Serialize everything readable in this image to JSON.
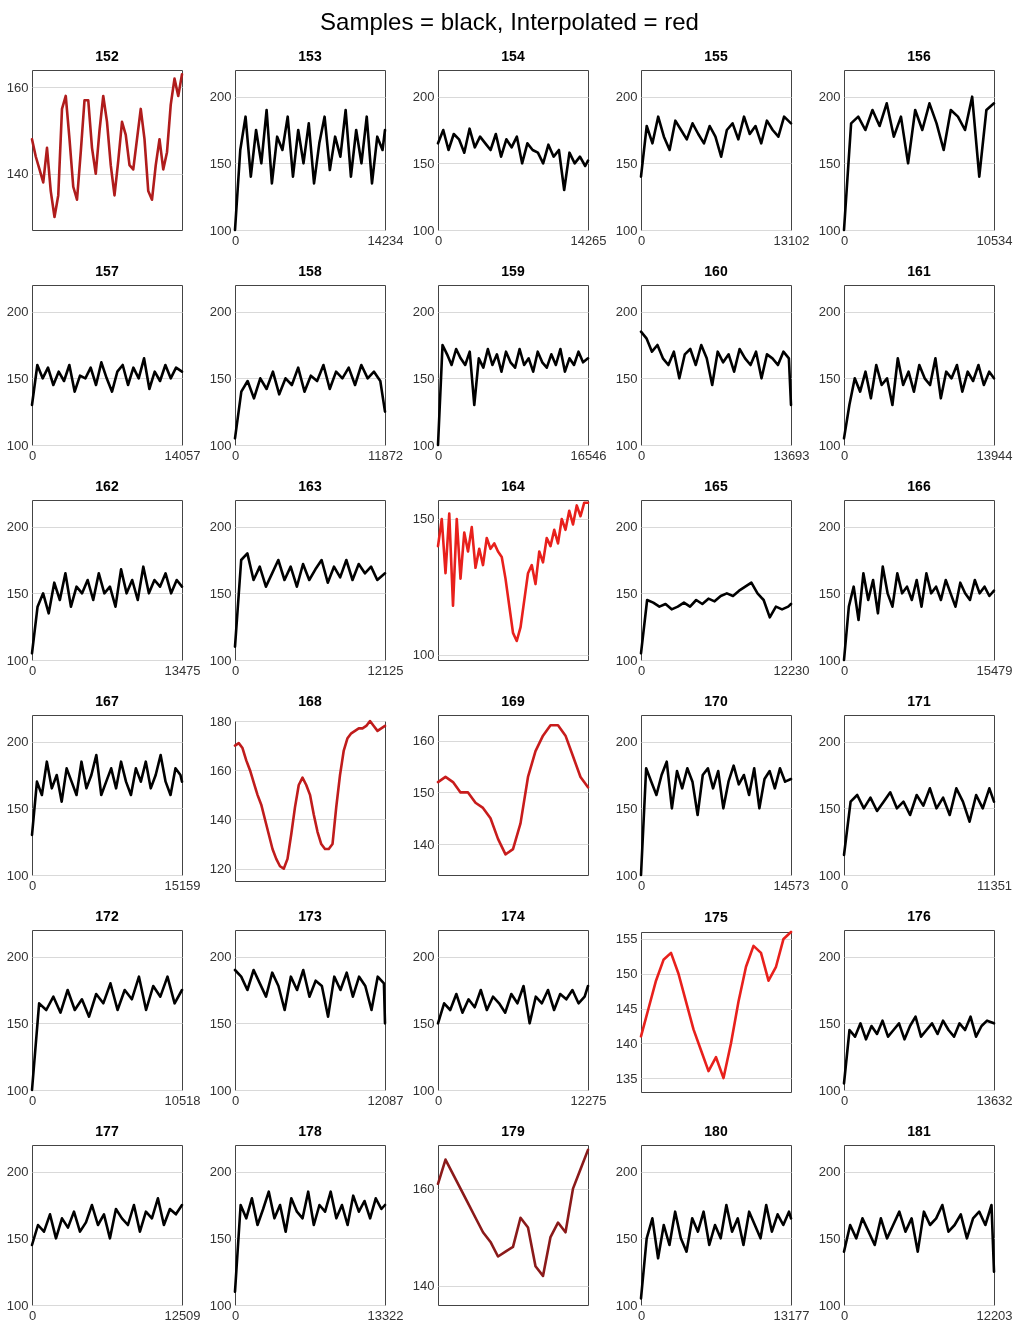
{
  "chart_data": [
    {
      "type": "line",
      "title": "152",
      "annotations": [
        "Samples = black, Interpolated = red"
      ],
      "categories": [
        null,
        null,
        null,
        null,
        null,
        null,
        null,
        null,
        null,
        null,
        null,
        null,
        null,
        null,
        null,
        null,
        null,
        null,
        null,
        null,
        null,
        null,
        null,
        null,
        null,
        null,
        null,
        null,
        null,
        null,
        null,
        null,
        null,
        null,
        null,
        null,
        null,
        null,
        null,
        null,
        null
      ],
      "series": [
        {
          "color": "#b01c1c",
          "values": [
            148,
            144,
            141,
            138,
            146,
            136,
            130,
            135,
            155,
            158,
            148,
            137,
            134,
            145,
            157,
            157,
            146,
            140,
            150,
            158,
            152,
            142,
            135,
            143,
            152,
            149,
            142,
            141,
            148,
            155,
            148,
            136,
            134,
            142,
            148,
            141,
            145,
            156,
            162,
            158,
            163
          ]
        }
      ],
      "tick_labels": "y",
      "ylim": [
        127,
        164
      ],
      "yticks": [
        140,
        160
      ],
      "grid": "y"
    },
    {
      "type": "line",
      "title": "153",
      "x": [
        0,
        500,
        1000,
        1500,
        2000,
        2500,
        3000,
        3500,
        4000,
        4500,
        5000,
        5500,
        6000,
        6500,
        7000,
        7500,
        8000,
        8500,
        9000,
        9500,
        10000,
        10500,
        11000,
        11500,
        12000,
        12500,
        13000,
        13500,
        14000,
        14234
      ],
      "series": [
        {
          "color": "#000000",
          "values": [
            100,
            160,
            185,
            140,
            175,
            150,
            190,
            135,
            170,
            160,
            185,
            140,
            175,
            150,
            180,
            135,
            165,
            185,
            145,
            170,
            155,
            190,
            140,
            175,
            150,
            185,
            135,
            170,
            160,
            175
          ]
        }
      ],
      "xlim": [
        0,
        14234
      ],
      "xticks": [
        0,
        14234
      ],
      "ylim": [
        100,
        220
      ],
      "yticks": [
        100,
        150,
        200
      ],
      "grid": "y"
    },
    {
      "type": "line",
      "title": "154",
      "x": [
        0,
        500,
        1000,
        1500,
        2000,
        2500,
        3000,
        3500,
        4000,
        4500,
        5000,
        5500,
        6000,
        6500,
        7000,
        7500,
        8000,
        8500,
        9000,
        9500,
        10000,
        10500,
        11000,
        11500,
        12000,
        12500,
        13000,
        13500,
        14000,
        14265
      ],
      "series": [
        {
          "color": "#000000",
          "values": [
            165,
            175,
            160,
            172,
            168,
            158,
            176,
            162,
            170,
            165,
            160,
            172,
            155,
            168,
            162,
            170,
            150,
            165,
            160,
            158,
            150,
            164,
            155,
            160,
            130,
            158,
            150,
            155,
            148,
            152
          ]
        }
      ],
      "xlim": [
        0,
        14265
      ],
      "xticks": [
        0,
        14265
      ],
      "ylim": [
        100,
        220
      ],
      "yticks": [
        100,
        150,
        200
      ],
      "grid": "y"
    },
    {
      "type": "line",
      "title": "155",
      "x": [
        0,
        500,
        1000,
        1500,
        2000,
        2500,
        3000,
        3500,
        4000,
        4500,
        5000,
        5500,
        6000,
        6500,
        7000,
        7500,
        8000,
        8500,
        9000,
        9500,
        10000,
        10500,
        11000,
        11500,
        12000,
        12500,
        13102
      ],
      "series": [
        {
          "color": "#000000",
          "values": [
            140,
            178,
            165,
            185,
            170,
            160,
            182,
            175,
            168,
            180,
            172,
            165,
            178,
            170,
            155,
            175,
            180,
            168,
            185,
            172,
            178,
            165,
            182,
            175,
            170,
            185,
            180
          ]
        }
      ],
      "xlim": [
        0,
        13102
      ],
      "xticks": [
        0,
        13102
      ],
      "ylim": [
        100,
        220
      ],
      "yticks": [
        100,
        150,
        200
      ],
      "grid": "y"
    },
    {
      "type": "line",
      "title": "156",
      "x": [
        0,
        500,
        1000,
        1500,
        2000,
        2500,
        3000,
        3500,
        4000,
        4500,
        5000,
        5500,
        6000,
        6500,
        7000,
        7500,
        8000,
        8500,
        9000,
        9500,
        10000,
        10534
      ],
      "series": [
        {
          "color": "#000000",
          "values": [
            100,
            180,
            185,
            175,
            190,
            178,
            195,
            170,
            185,
            150,
            190,
            175,
            195,
            180,
            160,
            190,
            185,
            175,
            200,
            140,
            190,
            195
          ]
        }
      ],
      "xlim": [
        0,
        10534
      ],
      "xticks": [
        0,
        10534
      ],
      "ylim": [
        100,
        220
      ],
      "yticks": [
        100,
        150,
        200
      ],
      "grid": "y"
    },
    {
      "type": "line",
      "title": "157",
      "x": [
        0,
        500,
        1000,
        1500,
        2000,
        2500,
        3000,
        3500,
        4000,
        4500,
        5000,
        5500,
        6000,
        6500,
        7000,
        7500,
        8000,
        8500,
        9000,
        9500,
        10000,
        10500,
        11000,
        11500,
        12000,
        12500,
        13000,
        13500,
        14057
      ],
      "series": [
        {
          "color": "#000000",
          "values": [
            130,
            160,
            150,
            158,
            145,
            155,
            148,
            160,
            140,
            152,
            150,
            158,
            145,
            162,
            150,
            140,
            155,
            160,
            145,
            158,
            150,
            165,
            142,
            155,
            148,
            160,
            150,
            158,
            155
          ]
        }
      ],
      "xlim": [
        0,
        14057
      ],
      "xticks": [
        0,
        14057
      ],
      "ylim": [
        100,
        220
      ],
      "yticks": [
        100,
        150,
        200
      ],
      "grid": "y"
    },
    {
      "type": "line",
      "title": "158",
      "x": [
        0,
        500,
        1000,
        1500,
        2000,
        2500,
        3000,
        3500,
        4000,
        4500,
        5000,
        5500,
        6000,
        6500,
        7000,
        7500,
        8000,
        8500,
        9000,
        9500,
        10000,
        10500,
        11000,
        11500,
        11872
      ],
      "series": [
        {
          "color": "#000000",
          "values": [
            105,
            140,
            148,
            135,
            150,
            142,
            155,
            138,
            150,
            145,
            158,
            140,
            152,
            148,
            160,
            142,
            155,
            150,
            158,
            145,
            160,
            150,
            155,
            148,
            125
          ]
        }
      ],
      "xlim": [
        0,
        11872
      ],
      "xticks": [
        0,
        11872
      ],
      "ylim": [
        100,
        220
      ],
      "yticks": [
        100,
        150,
        200
      ],
      "grid": "y"
    },
    {
      "type": "line",
      "title": "159",
      "x": [
        0,
        500,
        1000,
        1500,
        2000,
        2500,
        3000,
        3500,
        4000,
        4500,
        5000,
        5500,
        6000,
        6500,
        7000,
        7500,
        8000,
        8500,
        9000,
        9500,
        10000,
        10500,
        11000,
        11500,
        12000,
        12500,
        13000,
        13500,
        14000,
        14500,
        15000,
        15500,
        16000,
        16546
      ],
      "series": [
        {
          "color": "#000000",
          "values": [
            100,
            175,
            168,
            160,
            172,
            165,
            160,
            170,
            130,
            165,
            158,
            172,
            160,
            168,
            155,
            170,
            162,
            158,
            172,
            160,
            165,
            155,
            170,
            162,
            158,
            168,
            160,
            172,
            155,
            165,
            160,
            170,
            162,
            165
          ]
        }
      ],
      "xlim": [
        0,
        16546
      ],
      "xticks": [
        0,
        16546
      ],
      "ylim": [
        100,
        220
      ],
      "yticks": [
        100,
        150,
        200
      ],
      "grid": "y"
    },
    {
      "type": "line",
      "title": "160",
      "x": [
        0,
        500,
        1000,
        1500,
        2000,
        2500,
        3000,
        3500,
        4000,
        4500,
        5000,
        5500,
        6000,
        6500,
        7000,
        7500,
        8000,
        8500,
        9000,
        9500,
        10000,
        10500,
        11000,
        11500,
        12000,
        12500,
        13000,
        13500,
        13693
      ],
      "series": [
        {
          "color": "#000000",
          "values": [
            185,
            180,
            170,
            175,
            165,
            160,
            170,
            150,
            168,
            172,
            160,
            175,
            165,
            145,
            170,
            162,
            168,
            155,
            172,
            165,
            160,
            170,
            150,
            168,
            165,
            160,
            170,
            165,
            130
          ]
        }
      ],
      "xlim": [
        0,
        13693
      ],
      "xticks": [
        0,
        13693
      ],
      "ylim": [
        100,
        220
      ],
      "yticks": [
        100,
        150,
        200
      ],
      "grid": "y"
    },
    {
      "type": "line",
      "title": "161",
      "x": [
        0,
        500,
        1000,
        1500,
        2000,
        2500,
        3000,
        3500,
        4000,
        4500,
        5000,
        5500,
        6000,
        6500,
        7000,
        7500,
        8000,
        8500,
        9000,
        9500,
        10000,
        10500,
        11000,
        11500,
        12000,
        12500,
        13000,
        13500,
        13944
      ],
      "series": [
        {
          "color": "#000000",
          "values": [
            105,
            130,
            150,
            140,
            155,
            135,
            160,
            145,
            150,
            130,
            165,
            145,
            155,
            140,
            160,
            150,
            145,
            165,
            135,
            155,
            150,
            160,
            140,
            155,
            148,
            160,
            145,
            155,
            150
          ]
        }
      ],
      "xlim": [
        0,
        13944
      ],
      "xticks": [
        0,
        13944
      ],
      "ylim": [
        100,
        220
      ],
      "yticks": [
        100,
        150,
        200
      ],
      "grid": "y"
    },
    {
      "type": "line",
      "title": "162",
      "x": [
        0,
        500,
        1000,
        1500,
        2000,
        2500,
        3000,
        3500,
        4000,
        4500,
        5000,
        5500,
        6000,
        6500,
        7000,
        7500,
        8000,
        8500,
        9000,
        9500,
        10000,
        10500,
        11000,
        11500,
        12000,
        12500,
        13000,
        13475
      ],
      "series": [
        {
          "color": "#000000",
          "values": [
            105,
            140,
            150,
            135,
            158,
            145,
            165,
            140,
            155,
            150,
            160,
            145,
            165,
            150,
            155,
            140,
            168,
            150,
            160,
            145,
            170,
            150,
            160,
            155,
            165,
            150,
            160,
            155
          ]
        }
      ],
      "xlim": [
        0,
        13475
      ],
      "xticks": [
        0,
        13475
      ],
      "ylim": [
        100,
        220
      ],
      "yticks": [
        100,
        150,
        200
      ],
      "grid": "y"
    },
    {
      "type": "line",
      "title": "163",
      "x": [
        0,
        500,
        1000,
        1500,
        2000,
        2500,
        3000,
        3500,
        4000,
        4500,
        5000,
        5500,
        6000,
        6500,
        7000,
        7500,
        8000,
        8500,
        9000,
        9500,
        10000,
        10500,
        11000,
        11500,
        12125
      ],
      "series": [
        {
          "color": "#000000",
          "values": [
            110,
            175,
            180,
            160,
            170,
            155,
            165,
            175,
            160,
            170,
            155,
            172,
            160,
            168,
            175,
            158,
            170,
            162,
            175,
            160,
            172,
            165,
            170,
            160,
            165
          ]
        }
      ],
      "xlim": [
        0,
        12125
      ],
      "xticks": [
        0,
        12125
      ],
      "ylim": [
        100,
        220
      ],
      "yticks": [
        100,
        150,
        200
      ],
      "grid": "y"
    },
    {
      "type": "line",
      "title": "164",
      "categories": [
        null,
        null,
        null,
        null,
        null,
        null,
        null,
        null,
        null,
        null,
        null,
        null,
        null,
        null,
        null,
        null,
        null,
        null,
        null,
        null,
        null,
        null,
        null,
        null,
        null,
        null,
        null,
        null,
        null,
        null,
        null,
        null,
        null,
        null,
        null,
        null,
        null,
        null,
        null,
        null,
        null
      ],
      "series": [
        {
          "color": "#e8201c",
          "values": [
            140,
            150,
            130,
            152,
            118,
            150,
            128,
            145,
            138,
            147,
            132,
            139,
            133,
            143,
            139,
            141,
            138,
            136,
            128,
            118,
            108,
            105,
            110,
            120,
            130,
            133,
            126,
            138,
            134,
            143,
            140,
            146,
            141,
            150,
            146,
            153,
            148,
            155,
            151,
            156,
            156
          ]
        }
      ],
      "tick_labels": "y",
      "ylim": [
        98,
        157
      ],
      "yticks": [
        100,
        150
      ],
      "grid": "y"
    },
    {
      "type": "line",
      "title": "165",
      "x": [
        0,
        500,
        1000,
        1500,
        2000,
        2500,
        3000,
        3500,
        4000,
        4500,
        5000,
        5500,
        6000,
        6500,
        7000,
        7500,
        8000,
        8500,
        9000,
        9500,
        10000,
        10500,
        11000,
        11500,
        12000,
        12230
      ],
      "series": [
        {
          "color": "#000000",
          "values": [
            105,
            145,
            143,
            140,
            142,
            138,
            140,
            143,
            140,
            145,
            142,
            146,
            144,
            148,
            150,
            148,
            152,
            155,
            158,
            150,
            145,
            132,
            140,
            138,
            140,
            142
          ]
        }
      ],
      "xlim": [
        0,
        12230
      ],
      "xticks": [
        0,
        12230
      ],
      "ylim": [
        100,
        220
      ],
      "yticks": [
        100,
        150,
        200
      ],
      "grid": "y"
    },
    {
      "type": "line",
      "title": "166",
      "x": [
        0,
        500,
        1000,
        1500,
        2000,
        2500,
        3000,
        3500,
        4000,
        4500,
        5000,
        5500,
        6000,
        6500,
        7000,
        7500,
        8000,
        8500,
        9000,
        9500,
        10000,
        10500,
        11000,
        11500,
        12000,
        12500,
        13000,
        13500,
        14000,
        14500,
        15000,
        15479
      ],
      "series": [
        {
          "color": "#000000",
          "values": [
            100,
            140,
            155,
            130,
            165,
            145,
            160,
            135,
            170,
            150,
            140,
            165,
            150,
            155,
            145,
            160,
            140,
            165,
            150,
            155,
            145,
            160,
            150,
            140,
            158,
            150,
            145,
            160,
            150,
            155,
            148,
            152
          ]
        }
      ],
      "xlim": [
        0,
        15479
      ],
      "xticks": [
        0,
        15479
      ],
      "ylim": [
        100,
        220
      ],
      "yticks": [
        100,
        150,
        200
      ],
      "grid": "y"
    },
    {
      "type": "line",
      "title": "167",
      "x": [
        0,
        500,
        1000,
        1500,
        2000,
        2500,
        3000,
        3500,
        4000,
        4500,
        5000,
        5500,
        6000,
        6500,
        7000,
        7500,
        8000,
        8500,
        9000,
        9500,
        10000,
        10500,
        11000,
        11500,
        12000,
        12500,
        13000,
        13500,
        14000,
        14500,
        15000,
        15159
      ],
      "series": [
        {
          "color": "#000000",
          "values": [
            130,
            170,
            160,
            185,
            165,
            175,
            155,
            180,
            170,
            160,
            185,
            165,
            175,
            190,
            160,
            170,
            180,
            165,
            185,
            170,
            160,
            180,
            170,
            185,
            165,
            175,
            190,
            170,
            160,
            180,
            175,
            170
          ]
        }
      ],
      "xlim": [
        0,
        15159
      ],
      "xticks": [
        0,
        15159
      ],
      "ylim": [
        100,
        220
      ],
      "yticks": [
        100,
        150,
        200
      ],
      "grid": "y"
    },
    {
      "type": "line",
      "title": "168",
      "categories": [
        null,
        null,
        null,
        null,
        null,
        null,
        null,
        null,
        null,
        null,
        null,
        null,
        null,
        null,
        null,
        null,
        null,
        null,
        null,
        null,
        null,
        null,
        null,
        null,
        null,
        null,
        null,
        null,
        null,
        null,
        null,
        null,
        null,
        null,
        null,
        null,
        null,
        null,
        null,
        null,
        null
      ],
      "series": [
        {
          "color": "#c01c1c",
          "values": [
            170,
            171,
            169,
            164,
            160,
            155,
            150,
            146,
            140,
            134,
            128,
            124,
            121,
            120,
            124,
            134,
            145,
            154,
            157,
            154,
            150,
            142,
            135,
            130,
            128,
            128,
            130,
            145,
            158,
            168,
            173,
            175,
            176,
            177,
            177,
            178,
            180,
            178,
            176,
            177,
            178
          ]
        }
      ],
      "tick_labels": "y",
      "ylim": [
        115,
        180
      ],
      "yticks": [
        120,
        140,
        160,
        180
      ],
      "grid": "y"
    },
    {
      "type": "line",
      "title": "169",
      "categories": [
        null,
        null,
        null,
        null,
        null,
        null,
        null,
        null,
        null,
        null,
        null,
        null,
        null,
        null,
        null,
        null,
        null,
        null,
        null,
        null,
        null
      ],
      "series": [
        {
          "color": "#c81c1c",
          "values": [
            152,
            153,
            152,
            150,
            150,
            148,
            147,
            145,
            141,
            138,
            139,
            144,
            153,
            158,
            161,
            163,
            163,
            161,
            157,
            153,
            151
          ]
        }
      ],
      "tick_labels": "y",
      "ylim": [
        134,
        165
      ],
      "yticks": [
        140,
        150,
        160
      ],
      "grid": "y"
    },
    {
      "type": "line",
      "title": "170",
      "x": [
        0,
        500,
        1000,
        1500,
        2000,
        2500,
        3000,
        3500,
        4000,
        4500,
        5000,
        5500,
        6000,
        6500,
        7000,
        7500,
        8000,
        8500,
        9000,
        9500,
        10000,
        10500,
        11000,
        11500,
        12000,
        12500,
        13000,
        13500,
        14000,
        14573
      ],
      "series": [
        {
          "color": "#000000",
          "values": [
            100,
            180,
            170,
            160,
            175,
            185,
            150,
            178,
            165,
            180,
            170,
            145,
            175,
            180,
            165,
            178,
            150,
            170,
            182,
            168,
            175,
            160,
            180,
            150,
            172,
            178,
            165,
            180,
            170,
            172
          ]
        }
      ],
      "xlim": [
        0,
        14573
      ],
      "xticks": [
        0,
        14573
      ],
      "ylim": [
        100,
        220
      ],
      "yticks": [
        100,
        150,
        200
      ],
      "grid": "y"
    },
    {
      "type": "line",
      "title": "171",
      "x": [
        0,
        500,
        1000,
        1500,
        2000,
        2500,
        3000,
        3500,
        4000,
        4500,
        5000,
        5500,
        6000,
        6500,
        7000,
        7500,
        8000,
        8500,
        9000,
        9500,
        10000,
        10500,
        11000,
        11351
      ],
      "series": [
        {
          "color": "#000000",
          "values": [
            115,
            155,
            160,
            150,
            158,
            148,
            155,
            162,
            150,
            155,
            145,
            160,
            152,
            165,
            150,
            158,
            145,
            165,
            155,
            140,
            160,
            150,
            165,
            155
          ]
        }
      ],
      "xlim": [
        0,
        11351
      ],
      "xticks": [
        0,
        11351
      ],
      "ylim": [
        100,
        220
      ],
      "yticks": [
        100,
        150,
        200
      ],
      "grid": "y"
    },
    {
      "type": "line",
      "title": "172",
      "x": [
        0,
        500,
        1000,
        1500,
        2000,
        2500,
        3000,
        3500,
        4000,
        4500,
        5000,
        5500,
        6000,
        6500,
        7000,
        7500,
        8000,
        8500,
        9000,
        9500,
        10000,
        10518
      ],
      "series": [
        {
          "color": "#000000",
          "values": [
            100,
            165,
            160,
            170,
            158,
            175,
            160,
            168,
            155,
            172,
            165,
            180,
            160,
            175,
            168,
            185,
            160,
            178,
            170,
            185,
            165,
            175
          ]
        }
      ],
      "xlim": [
        0,
        10518
      ],
      "xticks": [
        0,
        10518
      ],
      "ylim": [
        100,
        220
      ],
      "yticks": [
        100,
        150,
        200
      ],
      "grid": "y"
    },
    {
      "type": "line",
      "title": "173",
      "x": [
        0,
        500,
        1000,
        1500,
        2000,
        2500,
        3000,
        3500,
        4000,
        4500,
        5000,
        5500,
        6000,
        6500,
        7000,
        7500,
        8000,
        8500,
        9000,
        9500,
        10000,
        10500,
        11000,
        11500,
        12000,
        12087
      ],
      "series": [
        {
          "color": "#000000",
          "values": [
            190,
            185,
            175,
            190,
            180,
            170,
            188,
            178,
            160,
            185,
            175,
            190,
            170,
            182,
            178,
            155,
            185,
            175,
            188,
            170,
            185,
            178,
            160,
            185,
            180,
            150
          ]
        }
      ],
      "xlim": [
        0,
        12087
      ],
      "xticks": [
        0,
        12087
      ],
      "ylim": [
        100,
        220
      ],
      "yticks": [
        100,
        150,
        200
      ],
      "grid": "y"
    },
    {
      "type": "line",
      "title": "174",
      "x": [
        0,
        500,
        1000,
        1500,
        2000,
        2500,
        3000,
        3500,
        4000,
        4500,
        5000,
        5500,
        6000,
        6500,
        7000,
        7500,
        8000,
        8500,
        9000,
        9500,
        10000,
        10500,
        11000,
        11500,
        12000,
        12275
      ],
      "series": [
        {
          "color": "#000000",
          "values": [
            150,
            165,
            160,
            172,
            158,
            168,
            162,
            175,
            160,
            170,
            165,
            158,
            172,
            165,
            178,
            150,
            170,
            165,
            175,
            160,
            172,
            168,
            175,
            165,
            170,
            178
          ]
        }
      ],
      "xlim": [
        0,
        12275
      ],
      "xticks": [
        0,
        12275
      ],
      "ylim": [
        100,
        220
      ],
      "yticks": [
        100,
        150,
        200
      ],
      "grid": "y"
    },
    {
      "type": "line",
      "title": "175",
      "categories": [
        null,
        null,
        null,
        null,
        null,
        null,
        null,
        null,
        null,
        null,
        null,
        null,
        null,
        null,
        null,
        null,
        null,
        null,
        null,
        null,
        null
      ],
      "series": [
        {
          "color": "#e8201c",
          "values": [
            141,
            145,
            149,
            152,
            153,
            150,
            146,
            142,
            139,
            136,
            138,
            135,
            140,
            146,
            151,
            154,
            153,
            149,
            151,
            155,
            156
          ]
        }
      ],
      "tick_labels": "y",
      "ylim": [
        133,
        156
      ],
      "yticks": [
        135,
        140,
        145,
        150,
        155
      ],
      "grid": "y"
    },
    {
      "type": "line",
      "title": "176",
      "x": [
        0,
        500,
        1000,
        1500,
        2000,
        2500,
        3000,
        3500,
        4000,
        4500,
        5000,
        5500,
        6000,
        6500,
        7000,
        7500,
        8000,
        8500,
        9000,
        9500,
        10000,
        10500,
        11000,
        11500,
        12000,
        12500,
        13000,
        13632
      ],
      "series": [
        {
          "color": "#000000",
          "values": [
            105,
            145,
            140,
            150,
            138,
            148,
            142,
            152,
            140,
            145,
            150,
            138,
            148,
            155,
            140,
            145,
            150,
            142,
            152,
            145,
            140,
            150,
            145,
            155,
            140,
            148,
            152,
            150
          ]
        }
      ],
      "xlim": [
        0,
        13632
      ],
      "xticks": [
        0,
        13632
      ],
      "ylim": [
        100,
        220
      ],
      "yticks": [
        100,
        150,
        200
      ],
      "grid": "y"
    },
    {
      "type": "line",
      "title": "177",
      "x": [
        0,
        500,
        1000,
        1500,
        2000,
        2500,
        3000,
        3500,
        4000,
        4500,
        5000,
        5500,
        6000,
        6500,
        7000,
        7500,
        8000,
        8500,
        9000,
        9500,
        10000,
        10500,
        11000,
        11500,
        12000,
        12509
      ],
      "series": [
        {
          "color": "#000000",
          "values": [
            145,
            160,
            155,
            168,
            150,
            165,
            158,
            170,
            155,
            162,
            175,
            160,
            168,
            150,
            172,
            165,
            160,
            175,
            155,
            170,
            165,
            180,
            160,
            172,
            168,
            175
          ]
        }
      ],
      "xlim": [
        0,
        12509
      ],
      "xticks": [
        0,
        12509
      ],
      "ylim": [
        100,
        220
      ],
      "yticks": [
        100,
        150,
        200
      ],
      "grid": "y"
    },
    {
      "type": "line",
      "title": "178",
      "x": [
        0,
        500,
        1000,
        1500,
        2000,
        2500,
        3000,
        3500,
        4000,
        4500,
        5000,
        5500,
        6000,
        6500,
        7000,
        7500,
        8000,
        8500,
        9000,
        9500,
        10000,
        10500,
        11000,
        11500,
        12000,
        12500,
        13000,
        13322
      ],
      "series": [
        {
          "color": "#000000",
          "values": [
            110,
            175,
            165,
            180,
            160,
            172,
            185,
            165,
            175,
            155,
            180,
            170,
            165,
            185,
            160,
            175,
            170,
            185,
            165,
            175,
            160,
            182,
            170,
            178,
            165,
            180,
            172,
            175
          ]
        }
      ],
      "xlim": [
        0,
        13322
      ],
      "xticks": [
        0,
        13322
      ],
      "ylim": [
        100,
        220
      ],
      "yticks": [
        100,
        150,
        200
      ],
      "grid": "y"
    },
    {
      "type": "line",
      "title": "179",
      "categories": [
        null,
        null,
        null,
        null,
        null,
        null,
        null,
        null,
        null,
        null,
        null,
        null,
        null,
        null,
        null,
        null,
        null,
        null,
        null,
        null,
        null
      ],
      "series": [
        {
          "color": "#8b1a1a",
          "values": [
            161,
            166,
            163,
            160,
            157,
            154,
            151,
            149,
            146,
            147,
            148,
            154,
            152,
            144,
            142,
            150,
            153,
            151,
            160,
            164,
            168
          ]
        }
      ],
      "tick_labels": "y",
      "ylim": [
        136,
        169
      ],
      "yticks": [
        140,
        160
      ],
      "grid": "y"
    },
    {
      "type": "line",
      "title": "180",
      "x": [
        0,
        500,
        1000,
        1500,
        2000,
        2500,
        3000,
        3500,
        4000,
        4500,
        5000,
        5500,
        6000,
        6500,
        7000,
        7500,
        8000,
        8500,
        9000,
        9500,
        10000,
        10500,
        11000,
        11500,
        12000,
        12500,
        13000,
        13177
      ],
      "series": [
        {
          "color": "#000000",
          "values": [
            105,
            150,
            165,
            135,
            160,
            145,
            170,
            150,
            140,
            165,
            155,
            170,
            145,
            160,
            150,
            175,
            155,
            165,
            145,
            170,
            160,
            150,
            175,
            155,
            168,
            160,
            170,
            165
          ]
        }
      ],
      "xlim": [
        0,
        13177
      ],
      "xticks": [
        0,
        13177
      ],
      "ylim": [
        100,
        220
      ],
      "yticks": [
        100,
        150,
        200
      ],
      "grid": "y"
    },
    {
      "type": "line",
      "title": "181",
      "x": [
        0,
        500,
        1000,
        1500,
        2000,
        2500,
        3000,
        3500,
        4000,
        4500,
        5000,
        5500,
        6000,
        6500,
        7000,
        7500,
        8000,
        8500,
        9000,
        9500,
        10000,
        10500,
        11000,
        11500,
        12000,
        12203
      ],
      "series": [
        {
          "color": "#000000",
          "values": [
            140,
            160,
            150,
            165,
            155,
            145,
            165,
            150,
            160,
            170,
            155,
            165,
            140,
            170,
            160,
            165,
            175,
            155,
            160,
            168,
            150,
            165,
            170,
            160,
            175,
            125
          ]
        }
      ],
      "xlim": [
        0,
        12203
      ],
      "xticks": [
        0,
        12203
      ],
      "ylim": [
        100,
        220
      ],
      "yticks": [
        100,
        150,
        200
      ],
      "grid": "y"
    }
  ]
}
